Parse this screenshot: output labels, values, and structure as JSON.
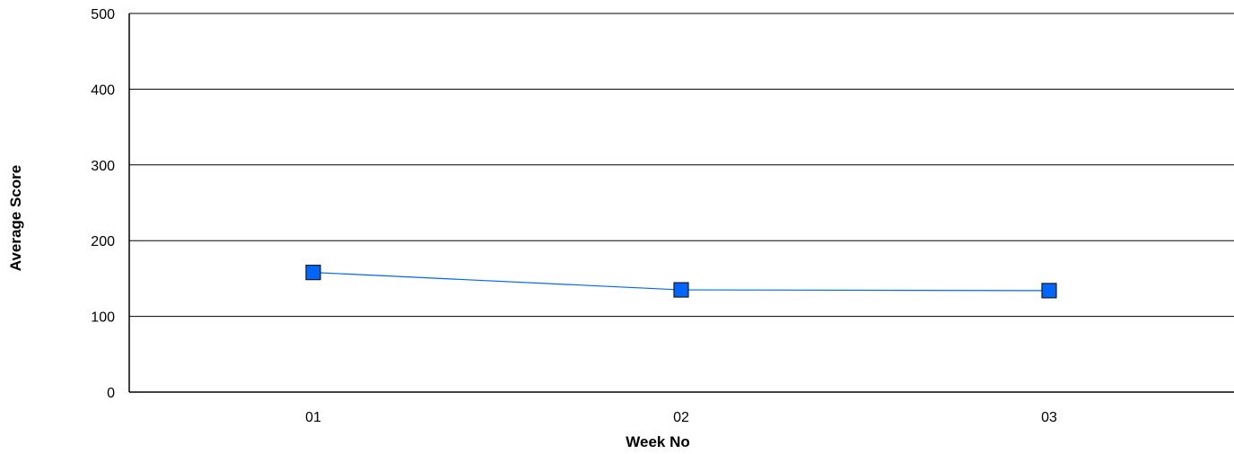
{
  "chart_data": {
    "type": "line",
    "title": "",
    "xlabel": "Week No",
    "ylabel": "Average Score",
    "categories": [
      "01",
      "02",
      "03"
    ],
    "series": [
      {
        "values": [
          158,
          135,
          134
        ],
        "color": "#0066ff"
      }
    ],
    "ylim": [
      0,
      500
    ],
    "yticks": [
      "0",
      "100",
      "200",
      "300",
      "400",
      "500"
    ],
    "grid": true,
    "legend": "none",
    "marker": "square"
  }
}
